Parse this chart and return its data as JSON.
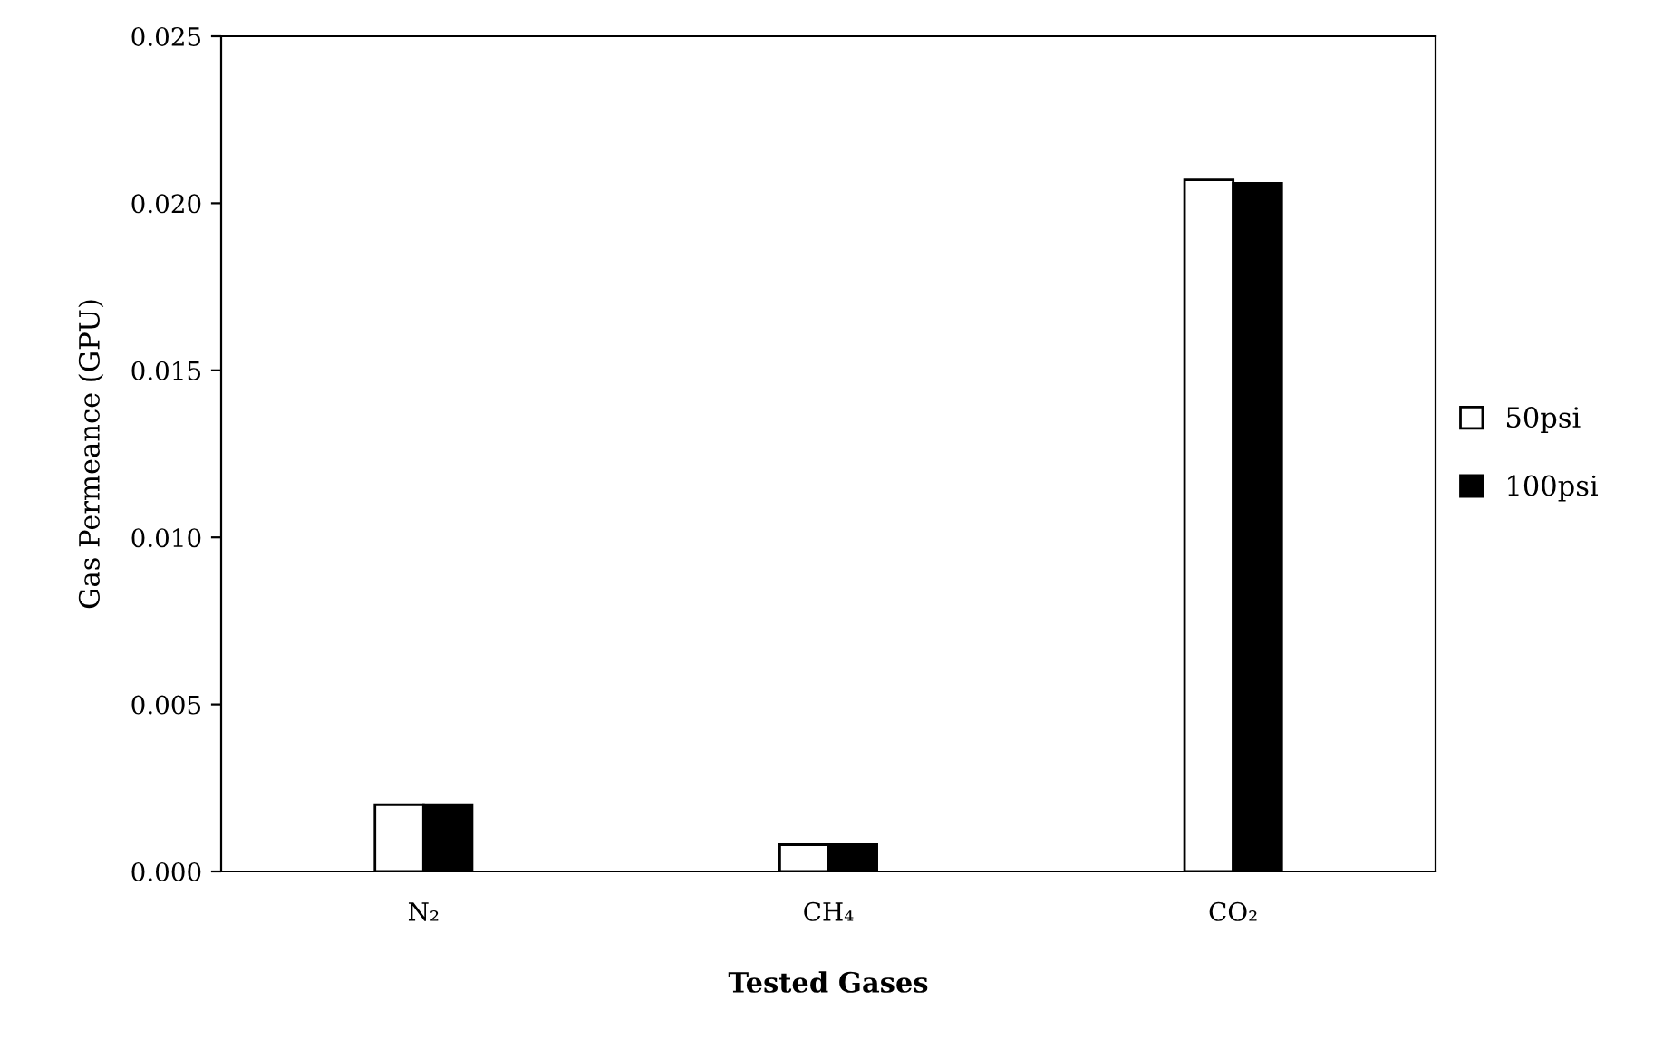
{
  "chart_data": {
    "type": "bar",
    "xlabel": "Tested Gases",
    "ylabel": "Gas Permeance (GPU)",
    "categories": [
      "N₂",
      "CH₄",
      "CO₂"
    ],
    "series": [
      {
        "name": "50psi",
        "color": "#ffffff",
        "values": [
          0.002,
          0.0008,
          0.0207
        ]
      },
      {
        "name": "100psi",
        "color": "#000000",
        "values": [
          0.002,
          0.0008,
          0.0206
        ]
      }
    ],
    "ylim": [
      0,
      0.025
    ],
    "yticks": [
      {
        "value": 0,
        "label": "0.000"
      },
      {
        "value": 0.005,
        "label": "0.005"
      },
      {
        "value": 0.01,
        "label": "0.010"
      },
      {
        "value": 0.015,
        "label": "0.015"
      },
      {
        "value": 0.02,
        "label": "0.020"
      },
      {
        "value": 0.025,
        "label": "0.025"
      }
    ],
    "grid": false,
    "legend": "right"
  }
}
